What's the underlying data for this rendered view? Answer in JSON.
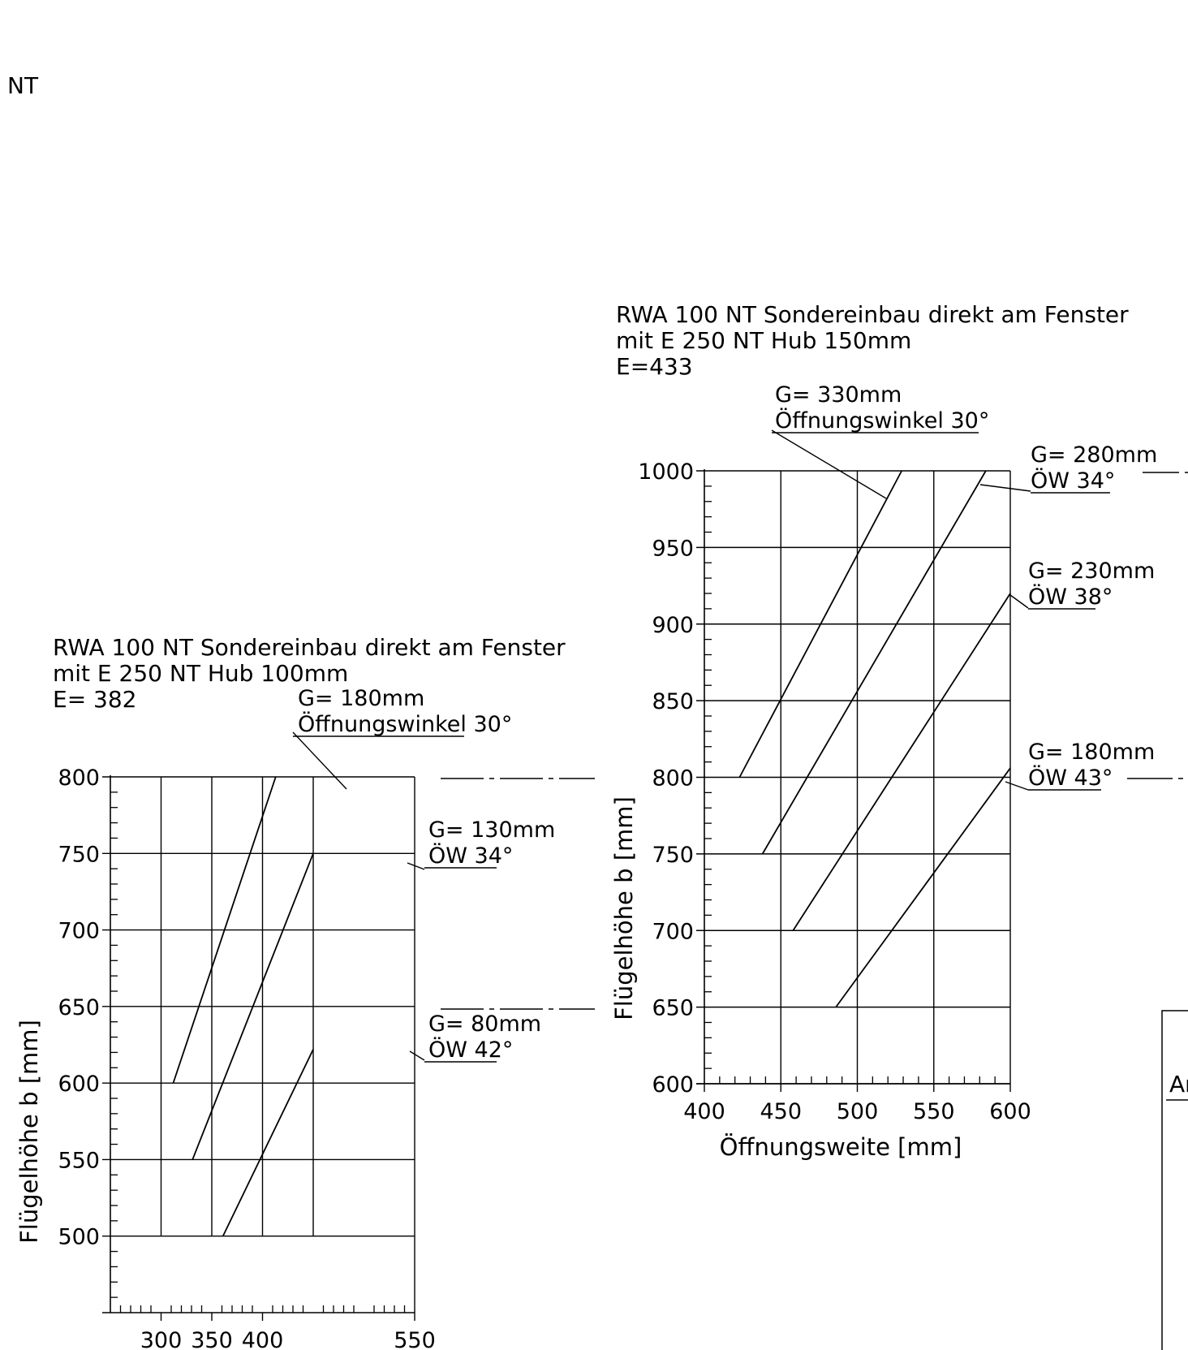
{
  "page": {
    "corner_label": "NT",
    "cut_label": "Ar"
  },
  "chart_data": [
    {
      "type": "line",
      "title_lines": [
        "RWA 100 NT Sondereinbau direkt am Fenster",
        "mit E 250 NT Hub 100mm",
        "E= 382"
      ],
      "xlabel": "",
      "ylabel": "Flügelhöhe b [mm]",
      "xlim": [
        250,
        550
      ],
      "ylim": [
        450,
        800
      ],
      "x_ticks": [
        "300",
        "350",
        "400",
        "550"
      ],
      "y_ticks": [
        "500",
        "550",
        "600",
        "650",
        "700",
        "750",
        "800"
      ],
      "series": [
        {
          "label_lines": [
            "G= 180mm",
            "Öffnungswinkel 30°"
          ],
          "points": [
            [
              312,
              600
            ],
            [
              413,
              800
            ]
          ]
        },
        {
          "label_lines": [
            "G= 130mm",
            "ÖW 34°"
          ],
          "points": [
            [
              331,
              550
            ],
            [
              450,
              750
            ]
          ]
        },
        {
          "label_lines": [
            "G= 80mm",
            "ÖW 42°"
          ],
          "points": [
            [
              361,
              500
            ],
            [
              450,
              622
            ]
          ]
        }
      ]
    },
    {
      "type": "line",
      "title_lines": [
        "RWA 100 NT Sondereinbau direkt am Fenster",
        "mit E 250 NT Hub 150mm",
        "E=433"
      ],
      "xlabel": "Öffnungsweite [mm]",
      "ylabel": "Flügelhöhe b [mm]",
      "xlim": [
        400,
        600
      ],
      "ylim": [
        600,
        1000
      ],
      "x_ticks": [
        "400",
        "450",
        "500",
        "550",
        "600"
      ],
      "y_ticks": [
        "600",
        "650",
        "700",
        "750",
        "800",
        "850",
        "900",
        "950",
        "1000"
      ],
      "series": [
        {
          "label_lines": [
            "G= 330mm",
            "Öffnungswinkel 30°"
          ],
          "points": [
            [
              423,
              800
            ],
            [
              529,
              1000
            ]
          ]
        },
        {
          "label_lines": [
            "G= 280mm",
            "ÖW 34°"
          ],
          "points": [
            [
              438,
              750
            ],
            [
              584,
              1000
            ]
          ]
        },
        {
          "label_lines": [
            "G= 230mm",
            "ÖW 38°"
          ],
          "points": [
            [
              458,
              700
            ],
            [
              600,
              920
            ]
          ]
        },
        {
          "label_lines": [
            "G= 180mm",
            "ÖW 43°"
          ],
          "points": [
            [
              486,
              650
            ],
            [
              600,
              806
            ]
          ]
        }
      ]
    }
  ]
}
